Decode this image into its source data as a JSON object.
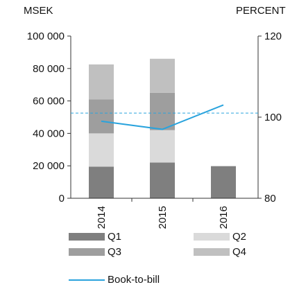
{
  "chart_data": {
    "type": "bar",
    "categories": [
      "2014",
      "2015",
      "2016"
    ],
    "series": [
      {
        "name": "Q1",
        "color": "#7f7f7f",
        "values": [
          19500,
          22000,
          19800
        ]
      },
      {
        "name": "Q2",
        "color": "#dadada",
        "values": [
          20500,
          20000,
          null
        ]
      },
      {
        "name": "Q3",
        "color": "#9e9e9e",
        "values": [
          21000,
          23000,
          null
        ]
      },
      {
        "name": "Q4",
        "color": "#c0c0c0",
        "values": [
          21500,
          21000,
          null
        ]
      }
    ],
    "line_series": {
      "name": "Book-to-bill",
      "color": "#29a3dd",
      "axis": "right",
      "values": [
        99,
        97,
        103
      ]
    },
    "reference_line": {
      "axis": "right",
      "value": 101,
      "style": "dashed",
      "color": "#29a3dd"
    },
    "left_axis": {
      "unit": "MSEK",
      "min": 0,
      "max": 100000,
      "tick_labels": [
        "0",
        "20 000",
        "40 000",
        "60 000",
        "80 000",
        "100 000"
      ],
      "tick_values": [
        0,
        20000,
        40000,
        60000,
        80000,
        100000
      ]
    },
    "right_axis": {
      "unit": "PERCENT",
      "min": 80,
      "max": 120,
      "tick_labels": [
        "80",
        "100",
        "120"
      ],
      "tick_values": [
        80,
        100,
        120
      ]
    },
    "grid": false,
    "legend_position": "bottom"
  }
}
